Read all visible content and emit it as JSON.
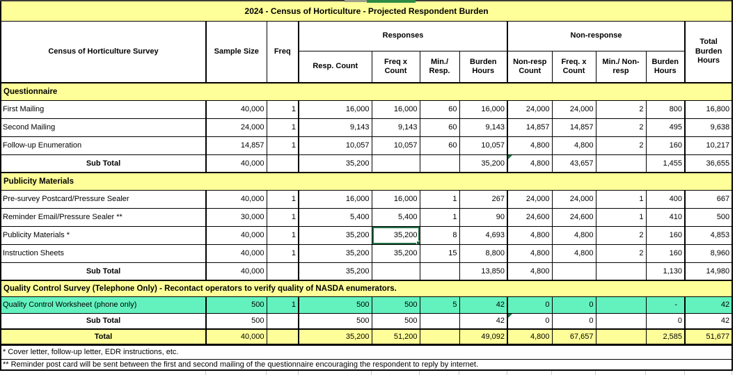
{
  "title": "2024 - Census of Horticulture - Projected Respondent Burden",
  "colors": {
    "section_yellow": "#FFFF99",
    "highlight_teal": "#63F2BE",
    "excel_green": "#1F7244",
    "strip_green": "#2E8B44"
  },
  "header": {
    "survey_col": "Census of Horticulture Survey",
    "sample_size": "Sample Size",
    "freq": "Freq",
    "responses": "Responses",
    "non_response": "Non-response",
    "resp_count": "Resp. Count",
    "freq_x_count": "Freq x Count",
    "min_per_resp": "Min./ Resp.",
    "burden_hours": "Burden Hours",
    "non_resp_count": "Non-resp Count",
    "freq_x_count_nr": "Freq. x Count",
    "min_per_non_resp": "Min./ Non-resp",
    "burden_hours_nr": "Burden Hours",
    "total_burden_hours": "Total Burden Hours"
  },
  "sections": [
    {
      "header": "Questionnaire",
      "rows": [
        {
          "label": "First Mailing",
          "values": [
            "40,000",
            "1",
            "16,000",
            "16,000",
            "60",
            "16,000",
            "24,000",
            "24,000",
            "2",
            "800",
            "16,800"
          ]
        },
        {
          "label": "Second Mailing",
          "values": [
            "24,000",
            "1",
            "9,143",
            "9,143",
            "60",
            "9,143",
            "14,857",
            "14,857",
            "2",
            "495",
            "9,638"
          ]
        },
        {
          "label": "Follow-up Enumeration",
          "values": [
            "14,857",
            "1",
            "10,057",
            "10,057",
            "60",
            "10,057",
            "4,800",
            "4,800",
            "2",
            "160",
            "10,217"
          ]
        }
      ],
      "subtotal": {
        "label": "Sub Total",
        "values": [
          "40,000",
          "",
          "35,200",
          "",
          "",
          "35,200",
          "4,800",
          "43,657",
          "",
          "1,455",
          "36,655"
        ],
        "flag_col": 6
      }
    },
    {
      "header": "Publicity Materials",
      "rows": [
        {
          "label": "Pre-survey Postcard/Pressure Sealer",
          "values": [
            "40,000",
            "1",
            "16,000",
            "16,000",
            "1",
            "267",
            "24,000",
            "24,000",
            "1",
            "400",
            "667"
          ]
        },
        {
          "label": "Reminder Email/Pressure Sealer **",
          "values": [
            "30,000",
            "1",
            "5,400",
            "5,400",
            "1",
            "90",
            "24,600",
            "24,600",
            "1",
            "410",
            "500"
          ]
        },
        {
          "label": "Publicity Materials *",
          "values": [
            "40,000",
            "1",
            "35,200",
            "35,200",
            "8",
            "4,693",
            "4,800",
            "4,800",
            "2",
            "160",
            "4,853"
          ],
          "selected_col": 3
        },
        {
          "label": "Instruction Sheets",
          "values": [
            "40,000",
            "1",
            "35,200",
            "35,200",
            "15",
            "8,800",
            "4,800",
            "4,800",
            "2",
            "160",
            "8,960"
          ]
        }
      ],
      "subtotal": {
        "label": "Sub Total",
        "values": [
          "40,000",
          "",
          "35,200",
          "",
          "",
          "13,850",
          "4,800",
          "",
          "",
          "1,130",
          "14,980"
        ]
      }
    },
    {
      "header": "Quality Control Survey (Telephone Only) - Recontact operators to verify quality of NASDA enumerators.",
      "rows": [
        {
          "label": "Quality Control Worksheet (phone only)",
          "values": [
            "500",
            "1",
            "500",
            "500",
            "5",
            "42",
            "0",
            "0",
            "",
            "-",
            "42"
          ],
          "highlight": true
        }
      ],
      "subtotal": {
        "label": "Sub Total",
        "values": [
          "500",
          "",
          "500",
          "500",
          "",
          "42",
          "0",
          "0",
          "",
          "0",
          "42"
        ],
        "flag_col": 6
      }
    }
  ],
  "total": {
    "label": "Total",
    "values": [
      "40,000",
      "",
      "35,200",
      "51,200",
      "",
      "49,092",
      "4,800",
      "67,657",
      "",
      "2,585",
      "51,677"
    ]
  },
  "footnotes": [
    "* Cover letter, follow-up letter, EDR instructions, etc.",
    "** Reminder post card will be sent between the first and second mailing of the questionnaire encouraging the respondent to reply by internet."
  ]
}
